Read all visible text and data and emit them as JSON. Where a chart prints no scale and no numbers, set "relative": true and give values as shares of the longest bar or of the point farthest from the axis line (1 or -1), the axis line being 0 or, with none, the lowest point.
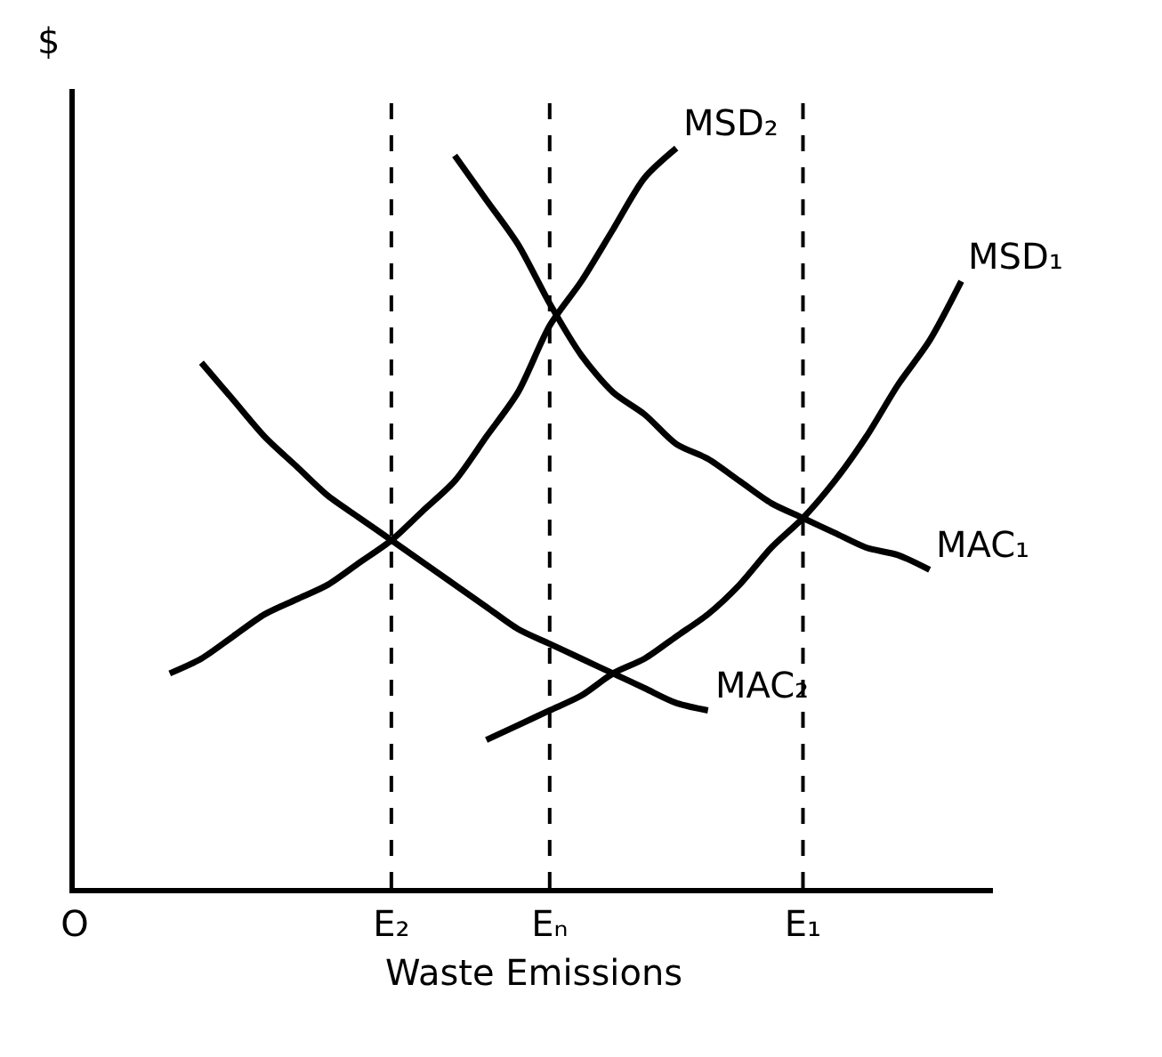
{
  "chart_data": {
    "type": "line",
    "relative": true,
    "ylabel": "$",
    "xlabel": "Waste Emissions",
    "categories": [
      "O",
      null,
      null,
      null,
      null,
      null,
      null,
      null,
      null,
      null,
      "E₂",
      null,
      null,
      null,
      null,
      "Eₙ",
      null,
      null,
      null,
      null,
      null,
      null,
      null,
      "E₁",
      null,
      null,
      null,
      null,
      null,
      null
    ],
    "series": [
      {
        "name": "MAC₁",
        "color": "#000000",
        "values": [
          null,
          null,
          null,
          null,
          null,
          null,
          null,
          null,
          null,
          null,
          null,
          null,
          0.99,
          0.93,
          0.87,
          0.79,
          0.72,
          0.67,
          0.64,
          0.6,
          0.58,
          0.55,
          0.52,
          0.5,
          0.48,
          0.46,
          0.45,
          0.43,
          null,
          null
        ]
      },
      {
        "name": "MAC₂",
        "color": "#000000",
        "values": [
          null,
          null,
          null,
          null,
          0.71,
          0.66,
          0.61,
          0.57,
          0.53,
          0.5,
          0.47,
          0.44,
          0.41,
          0.38,
          0.35,
          0.33,
          0.31,
          0.29,
          0.27,
          0.25,
          0.24,
          null,
          null,
          null,
          null,
          null,
          null,
          null,
          null,
          null
        ]
      },
      {
        "name": "MSD₂",
        "color": "#000000",
        "values": [
          null,
          null,
          null,
          0.29,
          0.31,
          0.34,
          0.37,
          0.39,
          0.41,
          0.44,
          0.47,
          0.51,
          0.55,
          0.61,
          0.67,
          0.76,
          0.82,
          0.89,
          0.96,
          1,
          null,
          null,
          null,
          null,
          null,
          null,
          null,
          null,
          null,
          null
        ]
      },
      {
        "name": "MSD₁",
        "color": "#000000",
        "values": [
          null,
          null,
          null,
          null,
          null,
          null,
          null,
          null,
          null,
          null,
          null,
          null,
          null,
          0.2,
          0.22,
          0.24,
          0.26,
          0.29,
          0.31,
          0.34,
          0.37,
          0.41,
          0.46,
          0.5,
          0.55,
          0.61,
          0.68,
          0.74,
          0.82,
          null
        ]
      }
    ],
    "ref_lines": [
      {
        "axis": "x",
        "value": "E₂",
        "line_style": "dashed",
        "color": "#000000"
      },
      {
        "axis": "x",
        "value": "Eₙ",
        "line_style": "dashed",
        "color": "#000000"
      },
      {
        "axis": "x",
        "value": "E₁",
        "line_style": "dashed",
        "color": "#000000"
      }
    ],
    "legend": false,
    "grid": false,
    "marker": "none",
    "line_style": "solid"
  }
}
